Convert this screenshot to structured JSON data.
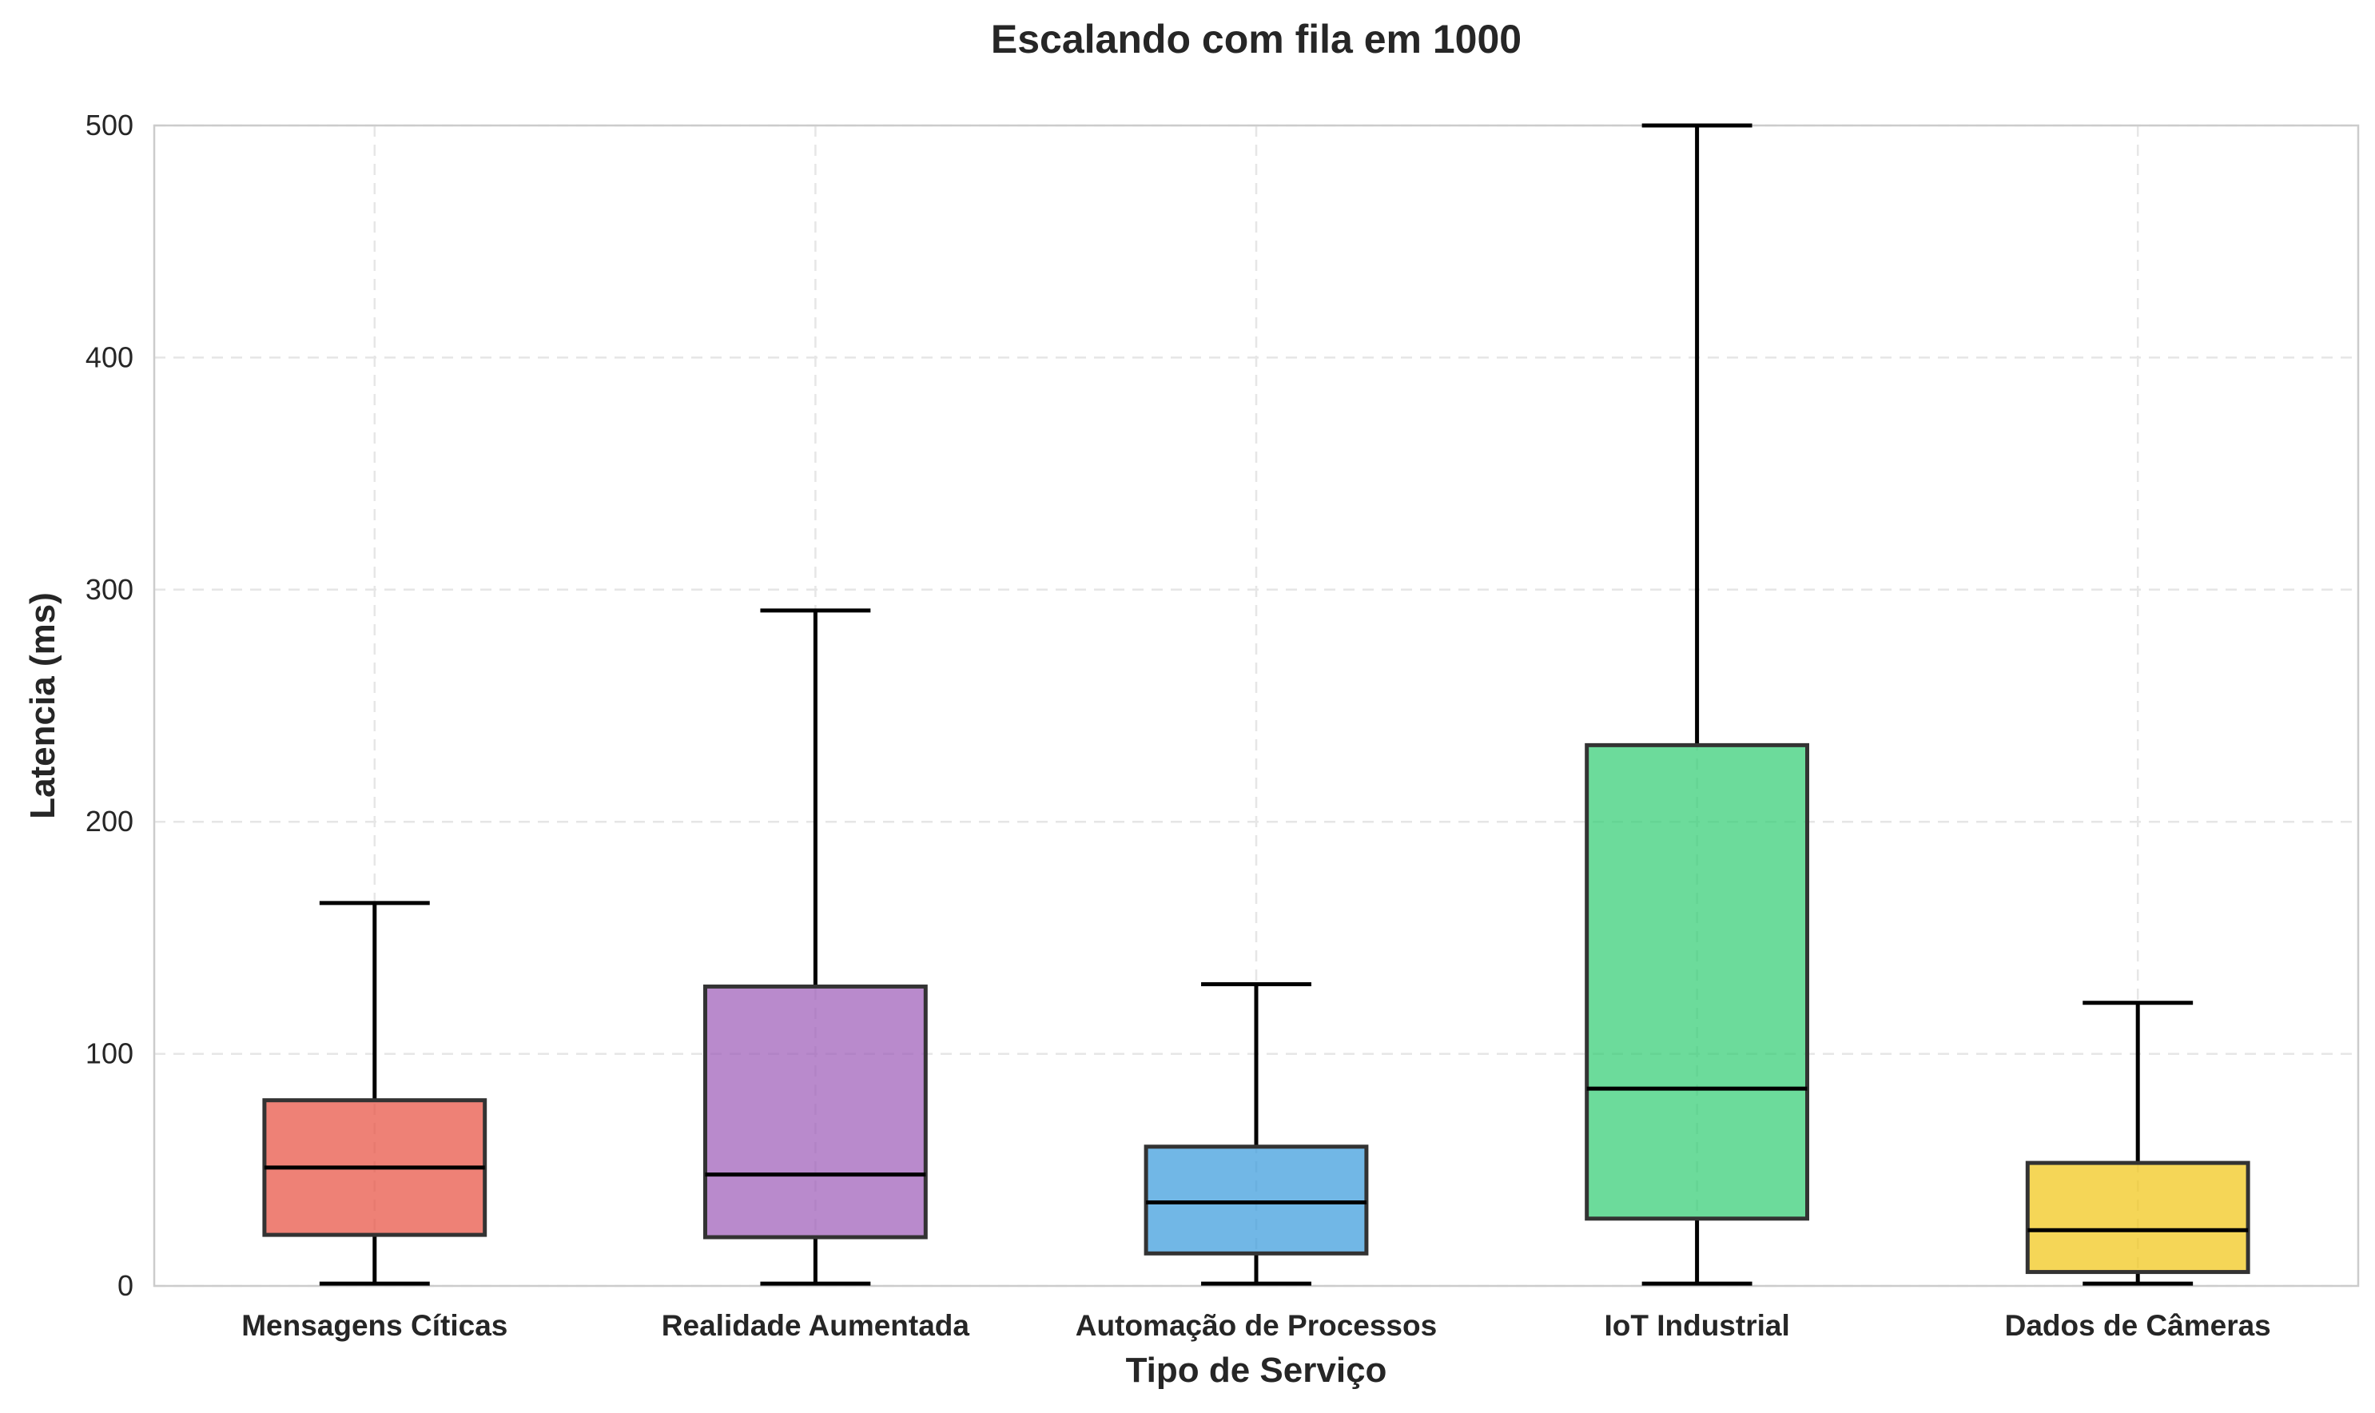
{
  "chart_data": {
    "type": "box",
    "title": "Escalando com fila em 1000",
    "xlabel": "Tipo de Serviço",
    "ylabel": "Latencia (ms)",
    "ylim": [
      0,
      500
    ],
    "yticks": [
      0,
      100,
      200,
      300,
      400,
      500
    ],
    "grid": true,
    "categories": [
      "Mensagens Cíticas",
      "Realidade Aumentada",
      "Automação de Processos",
      "IoT Industrial",
      "Dados de Câmeras"
    ],
    "boxes": [
      {
        "whisker_low": 1,
        "q1": 22,
        "median": 51,
        "q3": 80,
        "whisker_high": 165,
        "color": "#e74c3c"
      },
      {
        "whisker_low": 1,
        "q1": 21,
        "median": 48,
        "q3": 129,
        "whisker_high": 291,
        "color": "#9b59b6"
      },
      {
        "whisker_low": 1,
        "q1": 14,
        "median": 36,
        "q3": 60,
        "whisker_high": 130,
        "color": "#3498db"
      },
      {
        "whisker_low": 1,
        "q1": 29,
        "median": 85,
        "q3": 233,
        "whisker_high": 500,
        "color": "#2ecc71"
      },
      {
        "whisker_low": 1,
        "q1": 6,
        "median": 24,
        "q3": 53,
        "whisker_high": 122,
        "color": "#f1c40f"
      }
    ]
  }
}
